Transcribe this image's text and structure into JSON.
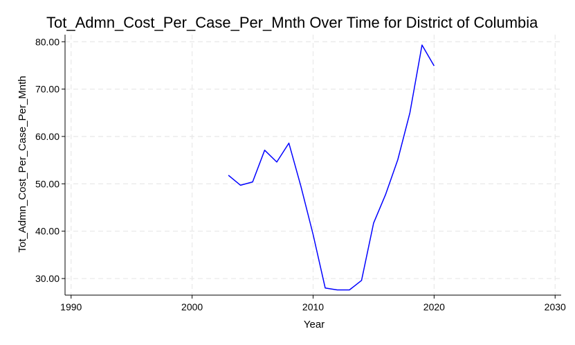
{
  "chart_data": {
    "type": "line",
    "title": "Tot_Admn_Cost_Per_Case_Per_Mnth Over Time for District of Columbia",
    "xlabel": "Year",
    "ylabel": "Tot_Admn_Cost_Per_Case_Per_Mnth",
    "xlim": [
      1989.5,
      2030.5
    ],
    "ylim": [
      26.5,
      81.5
    ],
    "xticks": [
      1990,
      2000,
      2010,
      2020,
      2030
    ],
    "xtick_labels": [
      "1990",
      "2000",
      "2010",
      "2020",
      "2030"
    ],
    "yticks": [
      30,
      40,
      50,
      60,
      70,
      80
    ],
    "ytick_labels": [
      "30.00",
      "40.00",
      "50.00",
      "60.00",
      "70.00",
      "80.00"
    ],
    "grid": true,
    "series": [
      {
        "color": "#0000ff",
        "x": [
          2003,
          2004,
          2005,
          2006,
          2007,
          2008,
          2009,
          2010,
          2011,
          2012,
          2013,
          2014,
          2015,
          2016,
          2017,
          2018,
          2019,
          2020
        ],
        "y": [
          51.8,
          49.7,
          50.4,
          57.1,
          54.6,
          58.6,
          49.4,
          39.3,
          28.0,
          27.6,
          27.6,
          29.6,
          41.7,
          47.8,
          55.1,
          65.0,
          79.3,
          74.9
        ]
      }
    ]
  }
}
